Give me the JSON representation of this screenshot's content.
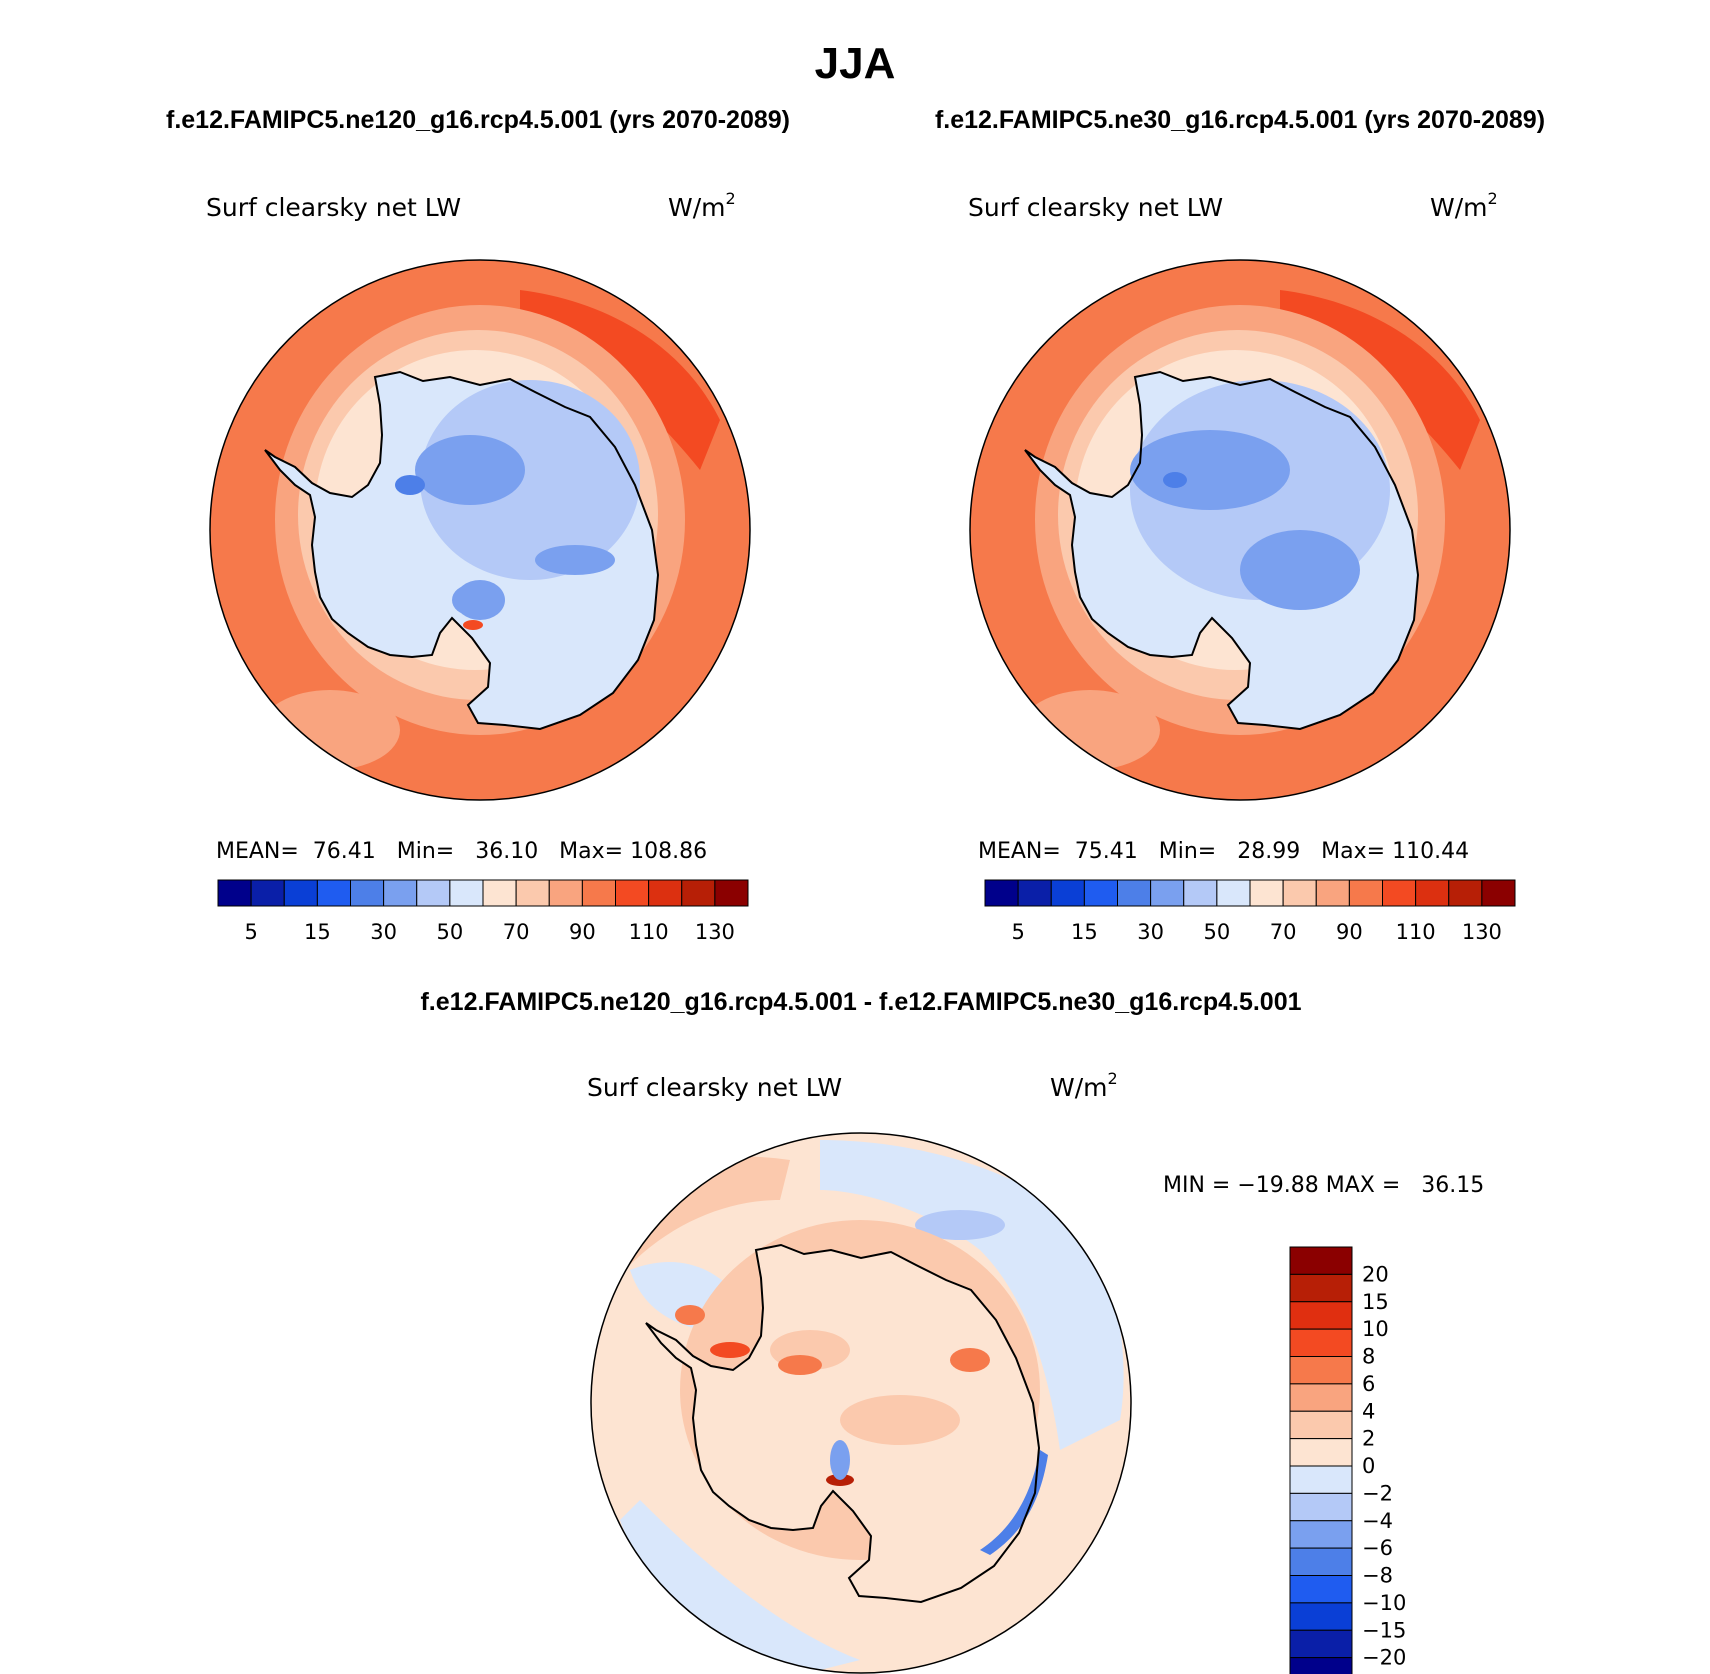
{
  "page": {
    "title": "JJA",
    "left_case": "f.e12.FAMIPC5.ne120_g16.rcp4.5.001 (yrs 2070-2089)",
    "right_case": "f.e12.FAMIPC5.ne30_g16.rcp4.5.001 (yrs 2070-2089)",
    "diff_title": "f.e12.FAMIPC5.ne120_g16.rcp4.5.001 - f.e12.FAMIPC5.ne30_g16.rcp4.5.001"
  },
  "panels": [
    {
      "variable": "Surf clearsky net LW",
      "units_base": "W/m",
      "units_exp": "2",
      "stats": "MEAN=  76.41   Min=   36.10   Max= 108.86"
    },
    {
      "variable": "Surf clearsky net LW",
      "units_base": "W/m",
      "units_exp": "2",
      "stats": "MEAN=  75.41   Min=   28.99   Max= 110.44"
    },
    {
      "variable": "Surf clearsky net LW",
      "units_base": "W/m",
      "units_exp": "2",
      "stats": "MIN = −19.88 MAX =   36.15"
    }
  ],
  "colorbar_abs": {
    "colors": [
      "#00008b",
      "#0a1fa8",
      "#0a3fd6",
      "#1f5cf0",
      "#4d7fe8",
      "#7aa0ef",
      "#b4c9f7",
      "#d9e7fb",
      "#fde4d2",
      "#fbc9ad",
      "#f9a47f",
      "#f6794b",
      "#f34a22",
      "#dc3010",
      "#b71f06",
      "#8b0000"
    ],
    "labels": [
      "5",
      "15",
      "30",
      "50",
      "70",
      "90",
      "110",
      "130"
    ]
  },
  "colorbar_diff": {
    "colors_top_to_bottom": [
      "#8b0000",
      "#b71f06",
      "#e02f10",
      "#f34a22",
      "#f6794b",
      "#f9a47f",
      "#fbc9ad",
      "#fde4d2",
      "#d9e7fb",
      "#b4c9f7",
      "#7aa0ef",
      "#4d7fe8",
      "#1f5cf0",
      "#0a3fd6",
      "#0a1fa8",
      "#00008b"
    ],
    "labels_top_to_bottom": [
      "20",
      "15",
      "10",
      "8",
      "6",
      "4",
      "2",
      "0",
      "−2",
      "−4",
      "−6",
      "−8",
      "−10",
      "−15",
      "−20"
    ]
  }
}
